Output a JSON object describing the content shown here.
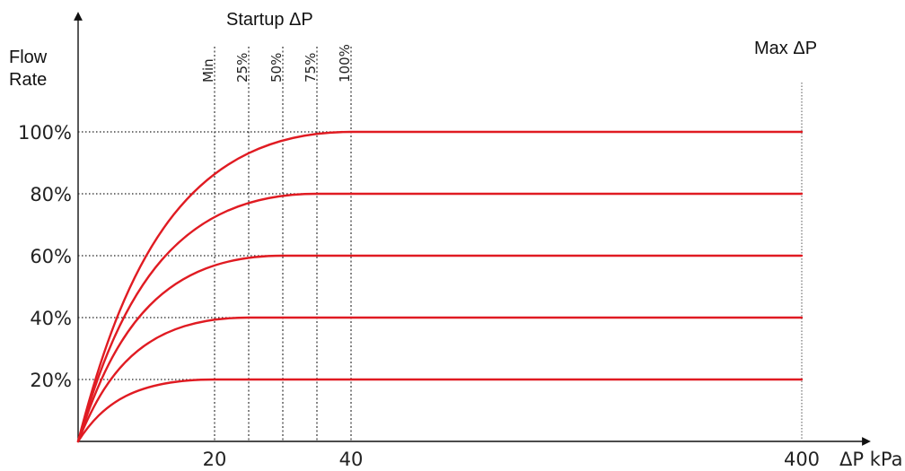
{
  "chart_data": {
    "type": "line",
    "ylabel": "Flow Rate",
    "xlabel": "ΔP kPa",
    "annotations": {
      "startup": "Startup ΔP",
      "max": "Max ΔP"
    },
    "y_ticks": [
      "20%",
      "40%",
      "60%",
      "80%",
      "100%"
    ],
    "x_ticks": [
      "20",
      "40",
      "400"
    ],
    "startup_labels": [
      "Min",
      "25%",
      "50%",
      "75%",
      "100%"
    ],
    "startup_dp": [
      20,
      25,
      30,
      35,
      40
    ],
    "max_dp": 400,
    "series": [
      {
        "flow": 20,
        "saturation_dp": 20,
        "x": [
          0,
          20,
          400
        ],
        "y": [
          0,
          20,
          20
        ]
      },
      {
        "flow": 40,
        "saturation_dp": 25,
        "x": [
          0,
          25,
          400
        ],
        "y": [
          0,
          40,
          40
        ]
      },
      {
        "flow": 60,
        "saturation_dp": 30,
        "x": [
          0,
          30,
          400
        ],
        "y": [
          0,
          60,
          60
        ]
      },
      {
        "flow": 80,
        "saturation_dp": 35,
        "x": [
          0,
          35,
          400
        ],
        "y": [
          0,
          80,
          80
        ]
      },
      {
        "flow": 100,
        "saturation_dp": 40,
        "x": [
          0,
          40,
          400
        ],
        "y": [
          0,
          100,
          100
        ]
      }
    ],
    "ylim": [
      0,
      100
    ],
    "x_scale": "broken (0–40 expanded, 400 at far right)",
    "grid": "dotted reference lines at each flow level and startup ΔP",
    "line_color": "#e01b22"
  }
}
